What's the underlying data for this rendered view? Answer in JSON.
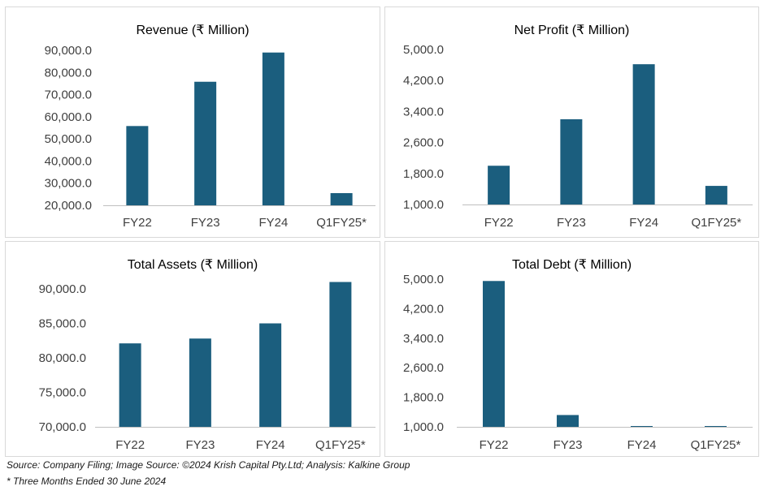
{
  "chart_data": [
    {
      "type": "bar",
      "title": "Revenue (₹ Million)",
      "categories": [
        "FY22",
        "FY23",
        "FY24",
        "Q1FY25*"
      ],
      "values": [
        55800,
        75800,
        89000,
        25500
      ],
      "ylim": [
        20000,
        90000
      ],
      "yticks": [
        20000,
        30000,
        40000,
        50000,
        60000,
        70000,
        80000,
        90000
      ],
      "xlabel": "",
      "ylabel": "",
      "color": "#1b5e7e",
      "grid": false
    },
    {
      "type": "bar",
      "title": "Net Profit (₹ Million)",
      "categories": [
        "FY22",
        "FY23",
        "FY24",
        "Q1FY25*"
      ],
      "values": [
        2000,
        3200,
        4620,
        1480
      ],
      "ylim": [
        1000,
        5000
      ],
      "yticks": [
        1000,
        1800,
        2600,
        3400,
        4200,
        5000
      ],
      "xlabel": "",
      "ylabel": "",
      "color": "#1b5e7e",
      "grid": false
    },
    {
      "type": "bar",
      "title": "Total Assets (₹ Million)",
      "categories": [
        "FY22",
        "FY23",
        "FY24",
        "Q1FY25*"
      ],
      "values": [
        82100,
        82800,
        85000,
        91000
      ],
      "ylim": [
        70000,
        90000
      ],
      "yticks": [
        70000,
        75000,
        80000,
        85000,
        90000
      ],
      "xlabel": "",
      "ylabel": "",
      "color": "#1b5e7e",
      "grid": false
    },
    {
      "type": "bar",
      "title": "Total Debt (₹ Million)",
      "categories": [
        "FY22",
        "FY23",
        "FY24",
        "Q1FY25*"
      ],
      "values": [
        4950,
        1320,
        990,
        990
      ],
      "ylim": [
        1000,
        5000
      ],
      "yticks": [
        1000,
        1800,
        2600,
        3400,
        4200,
        5000
      ],
      "xlabel": "",
      "ylabel": "",
      "color": "#1b5e7e",
      "grid": false
    }
  ],
  "footer": {
    "source": "Source: Company Filing; Image Source: ©2024 Krish Capital Pty.Ltd; Analysis: Kalkine Group",
    "note": "* Three Months Ended 30 June 2024"
  }
}
